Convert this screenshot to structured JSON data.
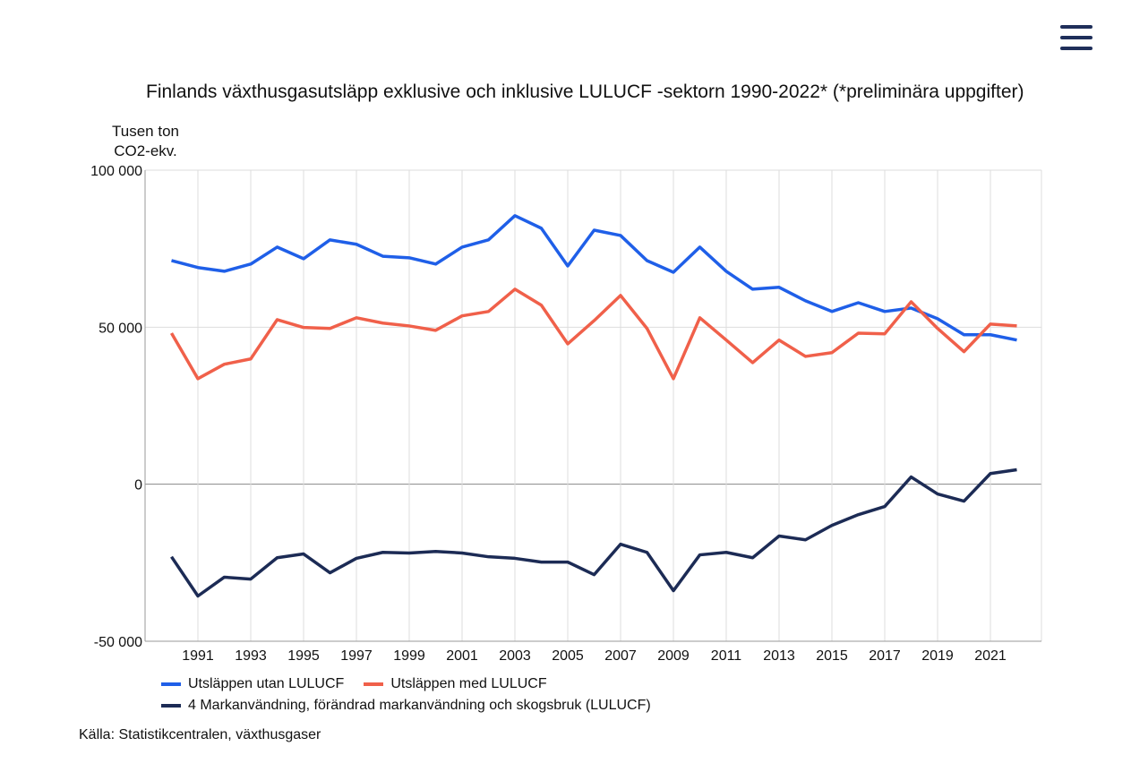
{
  "title": "Finlands växthusgasutsläpp exklusive och inklusive LULUCF -sektorn 1990-2022* (*preliminära uppgifter)",
  "menu_icon": "hamburger-menu-icon",
  "source": "Källa: Statistikcentralen, växthusgaser",
  "chart_data": {
    "type": "line",
    "title": "Finlands växthusgasutsläpp exklusive och inklusive LULUCF -sektorn 1990-2022* (*preliminära uppgifter)",
    "ylabel": "Tusen ton CO2-ekv.",
    "ylim": [
      -50000,
      100000
    ],
    "yticks": [
      "100 000",
      "50 000",
      "0",
      "-50 000"
    ],
    "ytick_values": [
      100000,
      50000,
      0,
      -50000
    ],
    "xticks": [
      "1991",
      "1993",
      "1995",
      "1997",
      "1999",
      "2001",
      "2003",
      "2005",
      "2007",
      "2009",
      "2011",
      "2013",
      "2015",
      "2017",
      "2019",
      "2021"
    ],
    "grid": true,
    "legend": "bottom",
    "x": [
      1990,
      1991,
      1992,
      1993,
      1994,
      1995,
      1996,
      1997,
      1998,
      1999,
      2000,
      2001,
      2002,
      2003,
      2004,
      2005,
      2006,
      2007,
      2008,
      2009,
      2010,
      2011,
      2012,
      2013,
      2014,
      2015,
      2016,
      2017,
      2018,
      2019,
      2020,
      2021,
      2022
    ],
    "series": [
      {
        "name": "Utsläppen utan LULUCF",
        "color": "#1f5fe8",
        "values": [
          71200,
          69000,
          67800,
          70100,
          75500,
          71800,
          77800,
          76400,
          72600,
          72100,
          70100,
          75500,
          77800,
          85500,
          81500,
          69500,
          80900,
          79200,
          71200,
          67500,
          75500,
          67800,
          62100,
          62700,
          58400,
          55000,
          57800,
          55000,
          56100,
          52700,
          47600,
          47600,
          45900
        ]
      },
      {
        "name": "Utsläppen med LULUCF",
        "color": "#f0604a",
        "values": [
          48100,
          33600,
          38200,
          39900,
          52400,
          49900,
          49600,
          53000,
          51300,
          50400,
          49000,
          53600,
          55000,
          62100,
          57000,
          44700,
          52100,
          60100,
          49600,
          33600,
          53000,
          45900,
          38700,
          45900,
          40700,
          41900,
          48100,
          47900,
          58100,
          49600,
          42200,
          51000,
          50400
        ]
      },
      {
        "name": "4 Markanvändning, förändrad markanvändning och skogsbruk (LULUCF)",
        "color": "#1c2b55",
        "values": [
          -23100,
          -35600,
          -29600,
          -30200,
          -23400,
          -22200,
          -28200,
          -23600,
          -21700,
          -21900,
          -21400,
          -21900,
          -23100,
          -23600,
          -24800,
          -24800,
          -28800,
          -19100,
          -21700,
          -33900,
          -22500,
          -21700,
          -23400,
          -16500,
          -17700,
          -13100,
          -9700,
          -7100,
          2300,
          -3100,
          -5400,
          3400,
          4600
        ]
      }
    ]
  }
}
